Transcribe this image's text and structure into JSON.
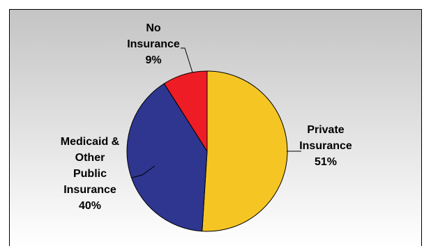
{
  "chart_data": {
    "type": "pie",
    "title": "",
    "start_angle_deg": 0,
    "direction": "clockwise",
    "slices": [
      {
        "name": "Private Insurance",
        "label_lines": [
          "Private",
          "Insurance",
          "51%"
        ],
        "value": 51,
        "color": "#F5C623"
      },
      {
        "name": "Medicaid & Other Public Insurance",
        "label_lines": [
          "Medicaid &",
          "Other",
          "Public",
          "Insurance",
          "40%"
        ],
        "value": 40,
        "color": "#2E3690"
      },
      {
        "name": "No Insurance",
        "label_lines": [
          "No",
          "Insurance",
          "9%"
        ],
        "value": 9,
        "color": "#EE1D25"
      }
    ],
    "legend": "none",
    "background": {
      "top_color": "#C4C4C4",
      "bottom_color": "#FFFFFF"
    }
  }
}
